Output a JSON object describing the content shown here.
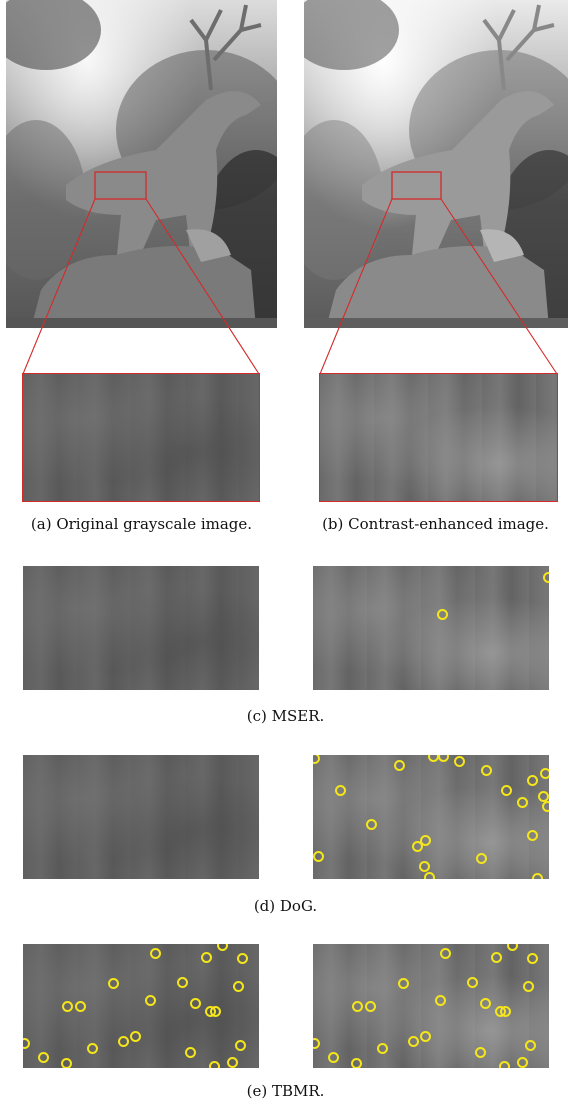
{
  "figure": {
    "captions": {
      "a": "(a) Original grayscale image.",
      "b": "(b) Contrast-enhanced image.",
      "c": "(c) MSER.",
      "d": "(d) DoG.",
      "e": "(e) TBMR."
    },
    "colors": {
      "zoom_box": "#d42a2a",
      "keypoint": "#f4e61a"
    }
  }
}
